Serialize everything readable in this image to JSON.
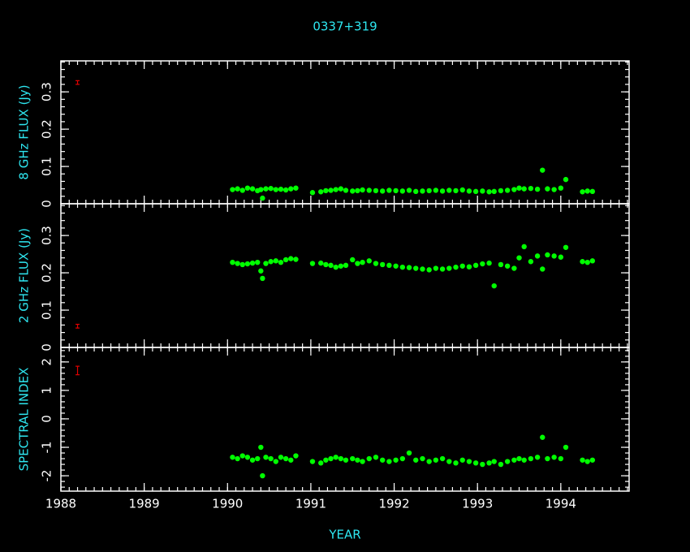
{
  "chart_data": [
    {
      "type": "scatter",
      "title": "0337+319",
      "ylabel": "8 GHz FLUX (Jy)",
      "xlim": [
        1988,
        1994.82
      ],
      "ylim": [
        0,
        0.383
      ],
      "yticks": [
        0,
        0.1,
        0.2,
        0.3
      ],
      "error_bar": {
        "x": 1988.2,
        "y": 0.325,
        "error": 0.005,
        "color": "#e00000"
      },
      "x": [
        1990.06,
        1990.12,
        1990.18,
        1990.24,
        1990.3,
        1990.36,
        1990.4,
        1990.42,
        1990.46,
        1990.52,
        1990.58,
        1990.64,
        1990.7,
        1990.76,
        1990.82,
        1991.02,
        1991.12,
        1991.18,
        1991.24,
        1991.3,
        1991.36,
        1991.42,
        1991.5,
        1991.56,
        1991.62,
        1991.7,
        1991.78,
        1991.86,
        1991.94,
        1992.02,
        1992.1,
        1992.18,
        1992.26,
        1992.34,
        1992.42,
        1992.5,
        1992.58,
        1992.66,
        1992.74,
        1992.82,
        1992.9,
        1992.98,
        1993.06,
        1993.14,
        1993.2,
        1993.28,
        1993.36,
        1993.44,
        1993.5,
        1993.56,
        1993.64,
        1993.72,
        1993.78,
        1993.84,
        1993.92,
        1994.0,
        1994.06,
        1994.26,
        1994.32,
        1994.38
      ],
      "color": "#00ff00",
      "values": [
        0.038,
        0.04,
        0.036,
        0.042,
        0.04,
        0.035,
        0.038,
        0.015,
        0.04,
        0.041,
        0.038,
        0.039,
        0.037,
        0.04,
        0.042,
        0.03,
        0.032,
        0.035,
        0.036,
        0.038,
        0.04,
        0.036,
        0.034,
        0.035,
        0.037,
        0.036,
        0.035,
        0.034,
        0.036,
        0.035,
        0.034,
        0.036,
        0.033,
        0.034,
        0.035,
        0.036,
        0.034,
        0.036,
        0.035,
        0.037,
        0.034,
        0.033,
        0.034,
        0.032,
        0.033,
        0.035,
        0.036,
        0.038,
        0.042,
        0.04,
        0.041,
        0.039,
        0.09,
        0.04,
        0.038,
        0.042,
        0.065,
        0.032,
        0.034,
        0.033
      ]
    },
    {
      "type": "scatter",
      "ylabel": "2 GHz FLUX (Jy)",
      "xlim": [
        1988,
        1994.82
      ],
      "ylim": [
        0,
        0.385
      ],
      "yticks": [
        0,
        0.1,
        0.2,
        0.3
      ],
      "error_bar": {
        "x": 1988.2,
        "y": 0.057,
        "error": 0.005,
        "color": "#e00000"
      },
      "x": [
        1990.06,
        1990.12,
        1990.18,
        1990.24,
        1990.3,
        1990.36,
        1990.4,
        1990.42,
        1990.46,
        1990.52,
        1990.58,
        1990.64,
        1990.7,
        1990.76,
        1990.82,
        1991.02,
        1991.12,
        1991.18,
        1991.24,
        1991.3,
        1991.36,
        1991.42,
        1991.5,
        1991.56,
        1991.62,
        1991.7,
        1991.78,
        1991.86,
        1991.94,
        1992.02,
        1992.1,
        1992.18,
        1992.26,
        1992.34,
        1992.42,
        1992.5,
        1992.58,
        1992.66,
        1992.74,
        1992.82,
        1992.9,
        1992.98,
        1993.06,
        1993.14,
        1993.2,
        1993.28,
        1993.36,
        1993.44,
        1993.5,
        1993.56,
        1993.64,
        1993.72,
        1993.78,
        1993.84,
        1993.92,
        1994.0,
        1994.06,
        1994.26,
        1994.32,
        1994.38
      ],
      "color": "#00ff00",
      "values": [
        0.228,
        0.225,
        0.222,
        0.224,
        0.226,
        0.228,
        0.205,
        0.185,
        0.225,
        0.23,
        0.232,
        0.228,
        0.235,
        0.238,
        0.236,
        0.225,
        0.226,
        0.222,
        0.22,
        0.215,
        0.218,
        0.22,
        0.235,
        0.225,
        0.228,
        0.232,
        0.225,
        0.222,
        0.22,
        0.218,
        0.215,
        0.214,
        0.212,
        0.21,
        0.208,
        0.212,
        0.21,
        0.212,
        0.215,
        0.218,
        0.216,
        0.22,
        0.224,
        0.226,
        0.165,
        0.222,
        0.218,
        0.212,
        0.24,
        0.27,
        0.23,
        0.245,
        0.21,
        0.248,
        0.245,
        0.242,
        0.268,
        0.23,
        0.228,
        0.232
      ]
    },
    {
      "type": "scatter",
      "ylabel": "SPECTRAL INDEX",
      "xlabel": "YEAR",
      "xlim": [
        1988,
        1994.82
      ],
      "xticks": [
        1988,
        1989,
        1990,
        1991,
        1992,
        1993,
        1994
      ],
      "ylim": [
        -2.54,
        2.51
      ],
      "yticks": [
        -2,
        -1,
        0,
        1,
        2
      ],
      "error_bar": {
        "x": 1988.2,
        "y": 1.7,
        "error": 0.15,
        "color": "#e00000"
      },
      "x": [
        1990.06,
        1990.12,
        1990.18,
        1990.24,
        1990.3,
        1990.36,
        1990.4,
        1990.42,
        1990.46,
        1990.52,
        1990.58,
        1990.64,
        1990.7,
        1990.76,
        1990.82,
        1991.02,
        1991.12,
        1991.18,
        1991.24,
        1991.3,
        1991.36,
        1991.42,
        1991.5,
        1991.56,
        1991.62,
        1991.7,
        1991.78,
        1991.86,
        1991.94,
        1992.02,
        1992.1,
        1992.18,
        1992.26,
        1992.34,
        1992.42,
        1992.5,
        1992.58,
        1992.66,
        1992.74,
        1992.82,
        1992.9,
        1992.98,
        1993.06,
        1993.14,
        1993.2,
        1993.28,
        1993.36,
        1993.44,
        1993.5,
        1993.56,
        1993.64,
        1993.72,
        1993.78,
        1993.84,
        1993.92,
        1994.0,
        1994.06,
        1994.26,
        1994.32,
        1994.38
      ],
      "color": "#00ff00",
      "values": [
        -1.35,
        -1.4,
        -1.3,
        -1.35,
        -1.45,
        -1.4,
        -1.0,
        -2.0,
        -1.35,
        -1.4,
        -1.5,
        -1.35,
        -1.4,
        -1.45,
        -1.3,
        -1.5,
        -1.55,
        -1.45,
        -1.4,
        -1.35,
        -1.4,
        -1.45,
        -1.4,
        -1.45,
        -1.5,
        -1.4,
        -1.35,
        -1.45,
        -1.5,
        -1.45,
        -1.4,
        -1.2,
        -1.45,
        -1.4,
        -1.5,
        -1.45,
        -1.4,
        -1.5,
        -1.55,
        -1.45,
        -1.5,
        -1.55,
        -1.6,
        -1.55,
        -1.5,
        -1.6,
        -1.5,
        -1.45,
        -1.4,
        -1.45,
        -1.4,
        -1.35,
        -0.65,
        -1.4,
        -1.35,
        -1.4,
        -1.0,
        -1.45,
        -1.5,
        -1.45
      ]
    }
  ]
}
